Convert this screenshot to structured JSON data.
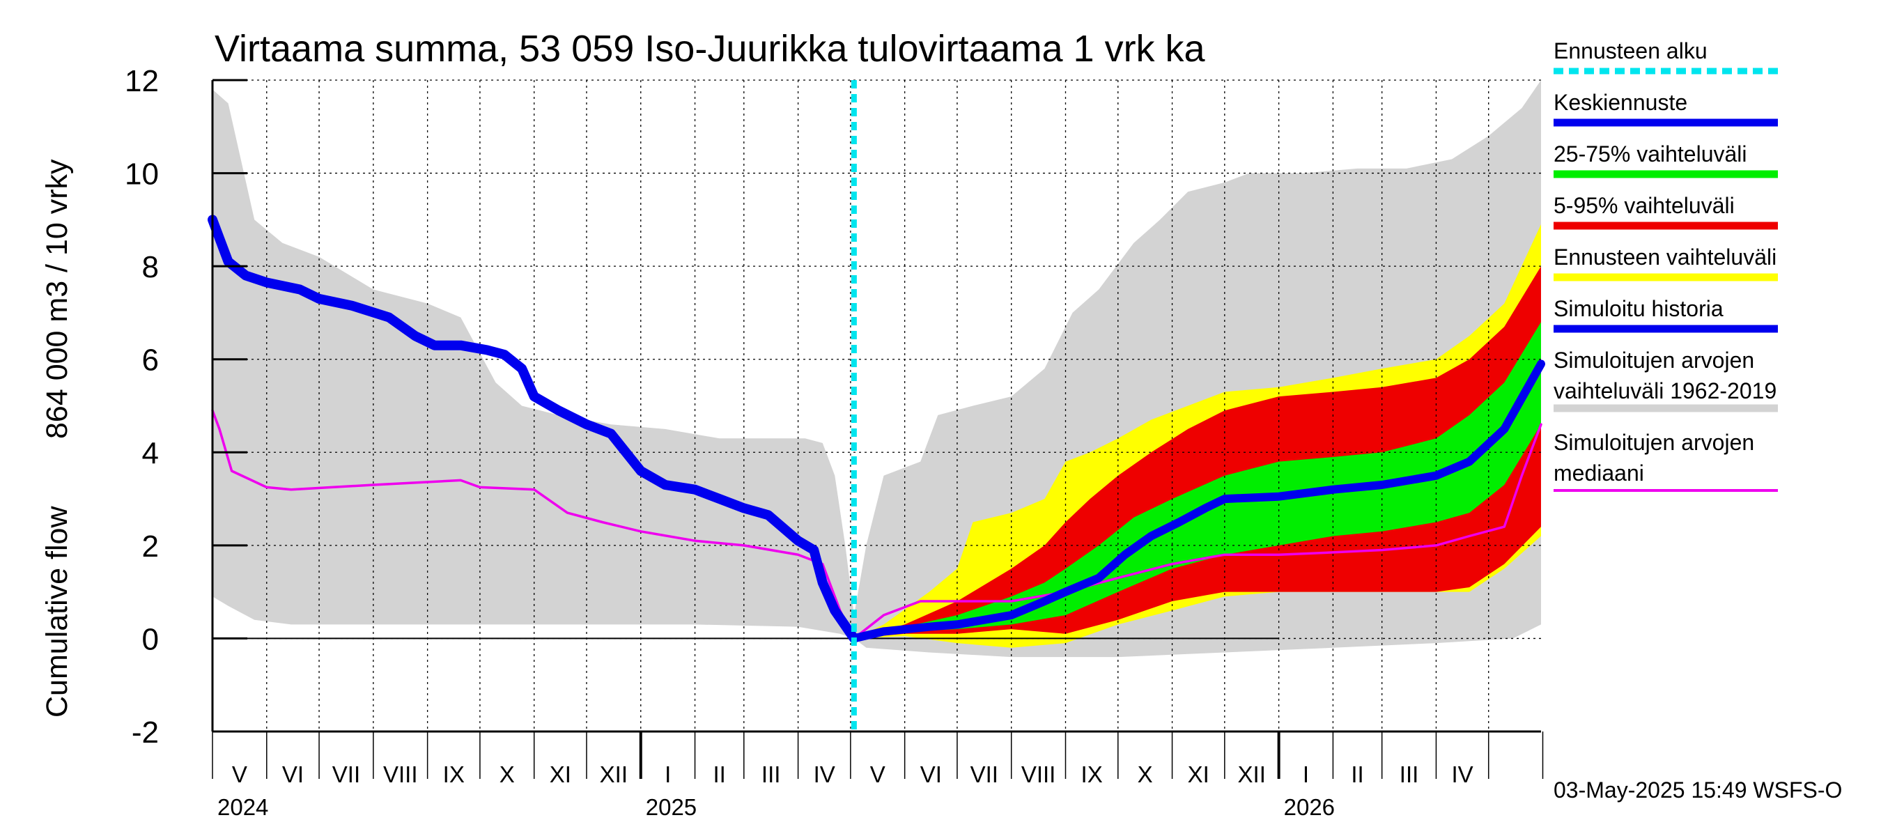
{
  "chart_data": {
    "type": "area",
    "title": "Virtaama summa, 53 059 Iso-Juurikka tulovirtaama 1 vrk ka",
    "ylabel_primary": "864 000 m3 / 10 vrky",
    "ylabel_secondary": "Cumulative flow",
    "ylim": [
      -2,
      12
    ],
    "yticks": [
      -2,
      0,
      2,
      4,
      6,
      8,
      10,
      12
    ],
    "grid": true,
    "legend_position": "right",
    "x_start": "2024-05-01",
    "x_end": "2026-05-31",
    "forecast_start": "2025-05-03",
    "months": [
      "V",
      "VI",
      "VII",
      "VIII",
      "IX",
      "X",
      "XI",
      "XII",
      "I",
      "II",
      "III",
      "IV",
      "V",
      "VI",
      "VII",
      "VIII",
      "IX",
      "X",
      "XI",
      "XII",
      "I",
      "II",
      "III",
      "IV"
    ],
    "years": [
      {
        "label": "2024",
        "date": "2024-05-01"
      },
      {
        "label": "2025",
        "date": "2025-01-01"
      },
      {
        "label": "2026",
        "date": "2026-01-01"
      }
    ],
    "footer": "03-May-2025 15:49 WSFS-O",
    "legend": [
      {
        "key": "ennusteen_alku",
        "lines": [
          "Ennusteen alku"
        ],
        "color": "#00e5ee",
        "style": "dashed"
      },
      {
        "key": "keskiennuste",
        "lines": [
          "Keskiennuste"
        ],
        "color": "#0000ee",
        "style": "solid"
      },
      {
        "key": "p25_75",
        "lines": [
          "25-75% vaihteluväli"
        ],
        "color": "#00ee00",
        "style": "solid"
      },
      {
        "key": "p5_95",
        "lines": [
          "5-95% vaihteluväli"
        ],
        "color": "#ee0000",
        "style": "solid"
      },
      {
        "key": "ennusteen_vaihteluvali",
        "lines": [
          "Ennusteen vaihteluväli"
        ],
        "color": "#ffff00",
        "style": "solid"
      },
      {
        "key": "simuloitu_historia",
        "lines": [
          "Simuloitu historia"
        ],
        "color": "#0000ee",
        "style": "solid"
      },
      {
        "key": "sim_range",
        "lines": [
          "Simuloitujen arvojen",
          "vaihteluväli 1962-2019"
        ],
        "color": "#d3d3d3",
        "style": "solid"
      },
      {
        "key": "sim_median",
        "lines": [
          "Simuloitujen arvojen",
          "mediaani"
        ],
        "color": "#ee00ee",
        "style": "solid"
      }
    ],
    "series": {
      "hist_range_upper": [
        [
          "2024-05-01",
          11.8
        ],
        [
          "2024-05-10",
          11.5
        ],
        [
          "2024-05-25",
          9.0
        ],
        [
          "2024-06-10",
          8.5
        ],
        [
          "2024-07-01",
          8.2
        ],
        [
          "2024-08-01",
          7.5
        ],
        [
          "2024-09-01",
          7.2
        ],
        [
          "2024-09-20",
          6.9
        ],
        [
          "2024-10-10",
          5.5
        ],
        [
          "2024-10-25",
          5.0
        ],
        [
          "2024-11-15",
          4.8
        ],
        [
          "2024-12-15",
          4.6
        ],
        [
          "2025-01-15",
          4.5
        ],
        [
          "2025-02-15",
          4.3
        ],
        [
          "2025-03-15",
          4.3
        ],
        [
          "2025-04-05",
          4.3
        ],
        [
          "2025-04-15",
          4.2
        ],
        [
          "2025-04-22",
          3.5
        ],
        [
          "2025-04-28",
          2.0
        ],
        [
          "2025-05-03",
          0.5
        ],
        [
          "2025-05-10",
          2.0
        ],
        [
          "2025-05-20",
          3.5
        ],
        [
          "2025-06-10",
          3.8
        ],
        [
          "2025-06-20",
          4.8
        ],
        [
          "2025-07-10",
          5.0
        ],
        [
          "2025-08-01",
          5.2
        ],
        [
          "2025-08-20",
          5.8
        ],
        [
          "2025-09-05",
          7.0
        ],
        [
          "2025-09-20",
          7.5
        ],
        [
          "2025-10-10",
          8.5
        ],
        [
          "2025-10-25",
          9.0
        ],
        [
          "2025-11-10",
          9.6
        ],
        [
          "2025-12-01",
          9.8
        ],
        [
          "2025-12-15",
          10.0
        ],
        [
          "2026-01-15",
          10.0
        ],
        [
          "2026-02-15",
          10.1
        ],
        [
          "2026-03-15",
          10.1
        ],
        [
          "2026-04-10",
          10.3
        ],
        [
          "2026-05-01",
          10.8
        ],
        [
          "2026-05-20",
          11.4
        ],
        [
          "2026-05-31",
          12.0
        ]
      ],
      "hist_range_lower": [
        [
          "2024-05-01",
          0.9
        ],
        [
          "2024-05-10",
          0.7
        ],
        [
          "2024-05-25",
          0.4
        ],
        [
          "2024-06-15",
          0.3
        ],
        [
          "2024-08-01",
          0.3
        ],
        [
          "2024-12-01",
          0.3
        ],
        [
          "2025-02-01",
          0.3
        ],
        [
          "2025-04-01",
          0.25
        ],
        [
          "2025-04-25",
          0.1
        ],
        [
          "2025-05-03",
          0.0
        ],
        [
          "2025-05-10",
          -0.2
        ],
        [
          "2025-06-15",
          -0.3
        ],
        [
          "2025-08-01",
          -0.4
        ],
        [
          "2025-10-01",
          -0.4
        ],
        [
          "2025-12-01",
          -0.3
        ],
        [
          "2026-02-01",
          -0.2
        ],
        [
          "2026-04-01",
          -0.1
        ],
        [
          "2026-05-15",
          0.0
        ],
        [
          "2026-05-31",
          0.3
        ]
      ],
      "forecast_range_upper": [
        [
          "2025-05-03",
          0.0
        ],
        [
          "2025-05-20",
          0.3
        ],
        [
          "2025-06-15",
          1.0
        ],
        [
          "2025-07-01",
          1.5
        ],
        [
          "2025-07-10",
          2.5
        ],
        [
          "2025-08-01",
          2.7
        ],
        [
          "2025-08-20",
          3.0
        ],
        [
          "2025-09-01",
          3.8
        ],
        [
          "2025-09-15",
          4.0
        ],
        [
          "2025-10-01",
          4.3
        ],
        [
          "2025-10-20",
          4.7
        ],
        [
          "2025-11-10",
          5.0
        ],
        [
          "2025-12-01",
          5.3
        ],
        [
          "2026-01-01",
          5.4
        ],
        [
          "2026-02-01",
          5.6
        ],
        [
          "2026-03-01",
          5.8
        ],
        [
          "2026-04-01",
          6.0
        ],
        [
          "2026-04-20",
          6.5
        ],
        [
          "2026-05-10",
          7.2
        ],
        [
          "2026-05-31",
          8.9
        ]
      ],
      "forecast_range_lower": [
        [
          "2025-05-03",
          0.0
        ],
        [
          "2025-06-01",
          0.05
        ],
        [
          "2025-07-01",
          -0.1
        ],
        [
          "2025-08-01",
          -0.2
        ],
        [
          "2025-09-01",
          -0.1
        ],
        [
          "2025-10-01",
          0.3
        ],
        [
          "2025-11-01",
          0.6
        ],
        [
          "2025-12-01",
          0.9
        ],
        [
          "2026-01-01",
          1.0
        ],
        [
          "2026-02-01",
          1.0
        ],
        [
          "2026-03-01",
          1.0
        ],
        [
          "2026-04-01",
          1.0
        ],
        [
          "2026-04-20",
          1.0
        ],
        [
          "2026-05-10",
          1.5
        ],
        [
          "2026-05-31",
          2.2
        ]
      ],
      "p5_95_upper": [
        [
          "2025-05-03",
          0.0
        ],
        [
          "2025-06-01",
          0.3
        ],
        [
          "2025-07-01",
          0.8
        ],
        [
          "2025-08-01",
          1.5
        ],
        [
          "2025-08-20",
          2.0
        ],
        [
          "2025-09-01",
          2.5
        ],
        [
          "2025-09-15",
          3.0
        ],
        [
          "2025-10-01",
          3.5
        ],
        [
          "2025-10-20",
          4.0
        ],
        [
          "2025-11-10",
          4.5
        ],
        [
          "2025-12-01",
          4.9
        ],
        [
          "2026-01-01",
          5.2
        ],
        [
          "2026-02-01",
          5.3
        ],
        [
          "2026-03-01",
          5.4
        ],
        [
          "2026-04-01",
          5.6
        ],
        [
          "2026-04-20",
          6.0
        ],
        [
          "2026-05-10",
          6.7
        ],
        [
          "2026-05-31",
          8.0
        ]
      ],
      "p5_95_lower": [
        [
          "2025-05-03",
          0.0
        ],
        [
          "2025-06-01",
          0.1
        ],
        [
          "2025-07-01",
          0.1
        ],
        [
          "2025-08-01",
          0.2
        ],
        [
          "2025-09-01",
          0.1
        ],
        [
          "2025-10-01",
          0.4
        ],
        [
          "2025-11-01",
          0.8
        ],
        [
          "2025-12-01",
          1.0
        ],
        [
          "2026-01-01",
          1.0
        ],
        [
          "2026-02-01",
          1.0
        ],
        [
          "2026-03-01",
          1.0
        ],
        [
          "2026-04-01",
          1.0
        ],
        [
          "2026-04-20",
          1.1
        ],
        [
          "2026-05-10",
          1.6
        ],
        [
          "2026-05-31",
          2.4
        ]
      ],
      "p25_75_upper": [
        [
          "2025-05-03",
          0.0
        ],
        [
          "2025-06-01",
          0.25
        ],
        [
          "2025-07-01",
          0.5
        ],
        [
          "2025-08-01",
          0.9
        ],
        [
          "2025-08-20",
          1.2
        ],
        [
          "2025-09-01",
          1.5
        ],
        [
          "2025-09-20",
          2.0
        ],
        [
          "2025-10-10",
          2.6
        ],
        [
          "2025-11-01",
          3.0
        ],
        [
          "2025-12-01",
          3.5
        ],
        [
          "2026-01-01",
          3.8
        ],
        [
          "2026-02-01",
          3.9
        ],
        [
          "2026-03-01",
          4.0
        ],
        [
          "2026-04-01",
          4.3
        ],
        [
          "2026-04-20",
          4.8
        ],
        [
          "2026-05-10",
          5.5
        ],
        [
          "2026-05-31",
          6.8
        ]
      ],
      "p25_75_lower": [
        [
          "2025-05-03",
          0.0
        ],
        [
          "2025-06-01",
          0.15
        ],
        [
          "2025-07-01",
          0.2
        ],
        [
          "2025-08-01",
          0.3
        ],
        [
          "2025-09-01",
          0.5
        ],
        [
          "2025-10-01",
          1.0
        ],
        [
          "2025-11-01",
          1.5
        ],
        [
          "2025-12-01",
          1.8
        ],
        [
          "2026-01-01",
          2.0
        ],
        [
          "2026-02-01",
          2.2
        ],
        [
          "2026-03-01",
          2.3
        ],
        [
          "2026-04-01",
          2.5
        ],
        [
          "2026-04-20",
          2.7
        ],
        [
          "2026-05-10",
          3.3
        ],
        [
          "2026-05-31",
          4.6
        ]
      ],
      "keskiennuste": [
        [
          "2025-05-03",
          0.0
        ],
        [
          "2025-05-20",
          0.15
        ],
        [
          "2025-06-15",
          0.25
        ],
        [
          "2025-07-01",
          0.3
        ],
        [
          "2025-08-01",
          0.5
        ],
        [
          "2025-08-20",
          0.8
        ],
        [
          "2025-09-01",
          1.0
        ],
        [
          "2025-09-20",
          1.3
        ],
        [
          "2025-10-05",
          1.8
        ],
        [
          "2025-10-20",
          2.2
        ],
        [
          "2025-11-05",
          2.5
        ],
        [
          "2025-11-20",
          2.8
        ],
        [
          "2025-12-01",
          3.0
        ],
        [
          "2026-01-01",
          3.05
        ],
        [
          "2026-02-01",
          3.2
        ],
        [
          "2026-03-01",
          3.3
        ],
        [
          "2026-04-01",
          3.5
        ],
        [
          "2026-04-20",
          3.8
        ],
        [
          "2026-05-10",
          4.5
        ],
        [
          "2026-05-31",
          5.9
        ]
      ],
      "simuloitu_historia": [
        [
          "2024-05-01",
          9.0
        ],
        [
          "2024-05-05",
          8.6
        ],
        [
          "2024-05-10",
          8.1
        ],
        [
          "2024-05-20",
          7.8
        ],
        [
          "2024-06-01",
          7.65
        ],
        [
          "2024-06-20",
          7.5
        ],
        [
          "2024-07-01",
          7.3
        ],
        [
          "2024-07-20",
          7.15
        ],
        [
          "2024-08-10",
          6.9
        ],
        [
          "2024-08-25",
          6.5
        ],
        [
          "2024-09-05",
          6.3
        ],
        [
          "2024-09-20",
          6.3
        ],
        [
          "2024-10-05",
          6.2
        ],
        [
          "2024-10-15",
          6.1
        ],
        [
          "2024-10-25",
          5.8
        ],
        [
          "2024-11-01",
          5.2
        ],
        [
          "2024-11-15",
          4.9
        ],
        [
          "2024-12-01",
          4.6
        ],
        [
          "2024-12-15",
          4.4
        ],
        [
          "2025-01-01",
          3.6
        ],
        [
          "2025-01-15",
          3.3
        ],
        [
          "2025-02-01",
          3.2
        ],
        [
          "2025-02-15",
          3.0
        ],
        [
          "2025-03-01",
          2.8
        ],
        [
          "2025-03-15",
          2.65
        ],
        [
          "2025-04-01",
          2.1
        ],
        [
          "2025-04-10",
          1.9
        ],
        [
          "2025-04-15",
          1.2
        ],
        [
          "2025-04-22",
          0.6
        ],
        [
          "2025-05-03",
          0.0
        ]
      ],
      "sim_median": [
        [
          "2024-05-01",
          4.9
        ],
        [
          "2024-05-05",
          4.5
        ],
        [
          "2024-05-12",
          3.6
        ],
        [
          "2024-06-01",
          3.25
        ],
        [
          "2024-06-15",
          3.2
        ],
        [
          "2024-08-01",
          3.3
        ],
        [
          "2024-09-20",
          3.4
        ],
        [
          "2024-10-01",
          3.25
        ],
        [
          "2024-11-01",
          3.2
        ],
        [
          "2024-11-20",
          2.7
        ],
        [
          "2024-12-10",
          2.5
        ],
        [
          "2025-01-01",
          2.3
        ],
        [
          "2025-02-01",
          2.1
        ],
        [
          "2025-03-01",
          2.0
        ],
        [
          "2025-04-01",
          1.8
        ],
        [
          "2025-04-15",
          1.6
        ],
        [
          "2025-04-25",
          0.6
        ],
        [
          "2025-05-03",
          0.0
        ],
        [
          "2025-05-20",
          0.5
        ],
        [
          "2025-06-10",
          0.8
        ],
        [
          "2025-07-01",
          0.8
        ],
        [
          "2025-08-01",
          0.8
        ],
        [
          "2025-09-01",
          1.0
        ],
        [
          "2025-10-01",
          1.3
        ],
        [
          "2025-11-01",
          1.6
        ],
        [
          "2025-12-01",
          1.8
        ],
        [
          "2026-01-01",
          1.8
        ],
        [
          "2026-02-01",
          1.85
        ],
        [
          "2026-03-01",
          1.9
        ],
        [
          "2026-04-01",
          2.0
        ],
        [
          "2026-04-20",
          2.2
        ],
        [
          "2026-05-10",
          2.4
        ],
        [
          "2026-05-20",
          3.5
        ],
        [
          "2026-05-31",
          4.6
        ]
      ]
    }
  }
}
